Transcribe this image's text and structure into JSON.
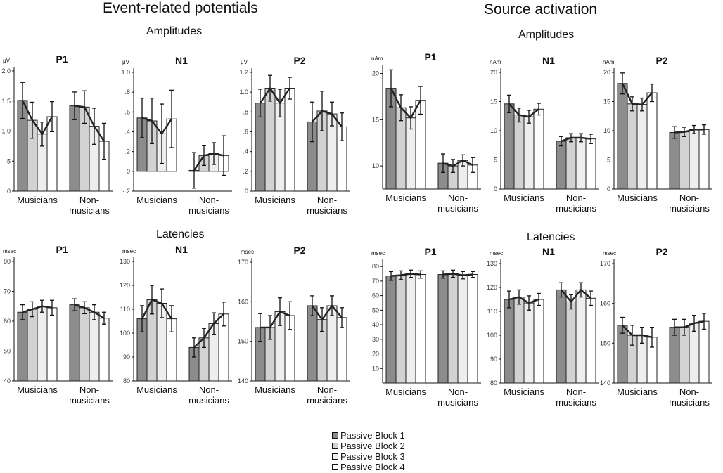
{
  "headings": {
    "erp_title": "Event-related potentials",
    "source_title": "Source activation",
    "erp_amplitudes": "Amplitudes",
    "erp_latencies": "Latencies",
    "src_amplitudes": "Amplitudes",
    "src_latencies": "Latencies"
  },
  "legend": [
    {
      "label": "Passive Block 1",
      "color": "#8c8c8c"
    },
    {
      "label": "Passive Block 2",
      "color": "#d2d2d2"
    },
    {
      "label": "Passive Block 3",
      "color": "#eeeeee"
    },
    {
      "label": "Passive Block 4",
      "color": "#ffffff"
    }
  ],
  "groups": [
    "Musicians",
    "Non-\nmusicians"
  ],
  "chart_data": [
    {
      "id": "erp-amp-p1",
      "type": "bar",
      "title": "P1",
      "unit": "μV",
      "ylim": [
        0,
        2.0
      ],
      "ticks": [
        "0",
        ".5",
        "1.0",
        "1.5",
        "2.0"
      ],
      "tick_values": [
        0,
        0.5,
        1.0,
        1.5,
        2.0
      ],
      "categories": [
        "Musicians",
        "Non-musicians"
      ],
      "series": [
        {
          "name": "Passive Block 1",
          "values": [
            1.51,
            1.42
          ],
          "errors": [
            0.3,
            0.23
          ]
        },
        {
          "name": "Passive Block 2",
          "values": [
            1.18,
            1.4
          ],
          "errors": [
            0.3,
            0.27
          ]
        },
        {
          "name": "Passive Block 3",
          "values": [
            0.95,
            1.08
          ],
          "errors": [
            0.2,
            0.3
          ]
        },
        {
          "name": "Passive Block 4",
          "values": [
            1.24,
            0.83
          ],
          "errors": [
            0.25,
            0.3
          ]
        }
      ]
    },
    {
      "id": "erp-amp-n1",
      "type": "bar",
      "title": "N1",
      "unit": "μV",
      "ylim": [
        -0.2,
        1.0
      ],
      "ticks": [
        "-.2",
        "0",
        ".2",
        ".4",
        ".6",
        ".8",
        "1.0"
      ],
      "tick_values": [
        -0.2,
        0,
        0.2,
        0.4,
        0.6,
        0.8,
        1.0
      ],
      "categories": [
        "Musicians",
        "Non-musicians"
      ],
      "series": [
        {
          "name": "Passive Block 1",
          "values": [
            0.54,
            0.01
          ],
          "errors": [
            0.2,
            0.18
          ]
        },
        {
          "name": "Passive Block 2",
          "values": [
            0.51,
            0.16
          ],
          "errors": [
            0.23,
            0.1
          ]
        },
        {
          "name": "Passive Block 3",
          "values": [
            0.38,
            0.18
          ],
          "errors": [
            0.3,
            0.11
          ]
        },
        {
          "name": "Passive Block 4",
          "values": [
            0.53,
            0.16
          ],
          "errors": [
            0.29,
            0.2
          ]
        }
      ]
    },
    {
      "id": "erp-amp-p2",
      "type": "bar",
      "title": "P2",
      "unit": "μV",
      "ylim": [
        0,
        1.2
      ],
      "ticks": [
        "0",
        ".2",
        ".4",
        ".6",
        ".8",
        "1.0",
        "1.2"
      ],
      "tick_values": [
        0,
        0.2,
        0.4,
        0.6,
        0.8,
        1.0,
        1.2
      ],
      "categories": [
        "Musicians",
        "Non-musicians"
      ],
      "series": [
        {
          "name": "Passive Block 1",
          "values": [
            0.89,
            0.7
          ],
          "errors": [
            0.14,
            0.2
          ]
        },
        {
          "name": "Passive Block 2",
          "values": [
            1.04,
            0.81
          ],
          "errors": [
            0.13,
            0.2
          ]
        },
        {
          "name": "Passive Block 3",
          "values": [
            0.89,
            0.78
          ],
          "errors": [
            0.14,
            0.12
          ]
        },
        {
          "name": "Passive Block 4",
          "values": [
            1.04,
            0.65
          ],
          "errors": [
            0.11,
            0.14
          ]
        }
      ]
    },
    {
      "id": "src-amp-p1",
      "type": "bar",
      "title": "P1",
      "unit": "nAm",
      "ylim": [
        7.5,
        20.5
      ],
      "ticks": [
        "10",
        "15",
        "20"
      ],
      "tick_values": [
        10,
        15,
        20
      ],
      "categories": [
        "Musicians",
        "Non-musicians"
      ],
      "series": [
        {
          "name": "Passive Block 1",
          "values": [
            18.4,
            10.3
          ],
          "errors": [
            2.0,
            1.0
          ]
        },
        {
          "name": "Passive Block 2",
          "values": [
            16.3,
            10.0
          ],
          "errors": [
            1.4,
            0.7
          ]
        },
        {
          "name": "Passive Block 3",
          "values": [
            15.2,
            10.6
          ],
          "errors": [
            1.2,
            0.6
          ]
        },
        {
          "name": "Passive Block 4",
          "values": [
            17.1,
            10.1
          ],
          "errors": [
            1.5,
            0.8
          ]
        }
      ]
    },
    {
      "id": "src-amp-n1",
      "type": "bar",
      "title": "N1",
      "unit": "nAm",
      "ylim": [
        0,
        20
      ],
      "ticks": [
        "0",
        "5",
        "10",
        "15",
        "20"
      ],
      "tick_values": [
        0,
        5,
        10,
        15,
        20
      ],
      "categories": [
        "Musicians",
        "Non-musicians"
      ],
      "series": [
        {
          "name": "Passive Block 1",
          "values": [
            14.6,
            8.2
          ],
          "errors": [
            1.5,
            0.8
          ]
        },
        {
          "name": "Passive Block 2",
          "values": [
            12.7,
            8.8
          ],
          "errors": [
            1.2,
            0.7
          ]
        },
        {
          "name": "Passive Block 3",
          "values": [
            12.4,
            8.8
          ],
          "errors": [
            1.1,
            0.7
          ]
        },
        {
          "name": "Passive Block 4",
          "values": [
            13.7,
            8.6
          ],
          "errors": [
            1.0,
            0.8
          ]
        }
      ]
    },
    {
      "id": "src-amp-p2",
      "type": "bar",
      "title": "P2",
      "unit": "nAm",
      "ylim": [
        0,
        20
      ],
      "ticks": [
        "0",
        "5",
        "10",
        "15",
        "20"
      ],
      "tick_values": [
        0,
        5,
        10,
        15,
        20
      ],
      "categories": [
        "Musicians",
        "Non-musicians"
      ],
      "series": [
        {
          "name": "Passive Block 1",
          "values": [
            18.1,
            9.7
          ],
          "errors": [
            1.8,
            1.0
          ]
        },
        {
          "name": "Passive Block 2",
          "values": [
            14.6,
            9.8
          ],
          "errors": [
            1.2,
            0.8
          ]
        },
        {
          "name": "Passive Block 3",
          "values": [
            14.5,
            10.2
          ],
          "errors": [
            1.1,
            0.7
          ]
        },
        {
          "name": "Passive Block 4",
          "values": [
            16.5,
            10.2
          ],
          "errors": [
            1.5,
            0.8
          ]
        }
      ]
    },
    {
      "id": "erp-lat-p1",
      "type": "bar",
      "title": "P1",
      "unit": "msec",
      "ylim": [
        40,
        80
      ],
      "ticks": [
        "40",
        "50",
        "60",
        "70",
        "80"
      ],
      "tick_values": [
        40,
        50,
        60,
        70,
        80
      ],
      "categories": [
        "Musicians",
        "Non-musicians"
      ],
      "series": [
        {
          "name": "Passive Block 1",
          "values": [
            63.0,
            65.5
          ],
          "errors": [
            2.5,
            2.0
          ]
        },
        {
          "name": "Passive Block 2",
          "values": [
            64.0,
            64.5
          ],
          "errors": [
            2.5,
            2.0
          ]
        },
        {
          "name": "Passive Block 3",
          "values": [
            65.0,
            63.0
          ],
          "errors": [
            2.0,
            2.5
          ]
        },
        {
          "name": "Passive Block 4",
          "values": [
            64.5,
            61.0
          ],
          "errors": [
            2.5,
            2.0
          ]
        }
      ]
    },
    {
      "id": "erp-lat-n1",
      "type": "bar",
      "title": "N1",
      "unit": "msec",
      "ylim": [
        80,
        130
      ],
      "ticks": [
        "80",
        "90",
        "100",
        "110",
        "120",
        "130"
      ],
      "tick_values": [
        80,
        90,
        100,
        110,
        120,
        130
      ],
      "categories": [
        "Musicians",
        "Non-musicians"
      ],
      "series": [
        {
          "name": "Passive Block 1",
          "values": [
            106.0,
            94.0
          ],
          "errors": [
            5.5,
            4.0
          ]
        },
        {
          "name": "Passive Block 2",
          "values": [
            114.0,
            98.0
          ],
          "errors": [
            6.0,
            4.0
          ]
        },
        {
          "name": "Passive Block 3",
          "values": [
            112.5,
            104.0
          ],
          "errors": [
            6.0,
            4.5
          ]
        },
        {
          "name": "Passive Block 4",
          "values": [
            106.0,
            108.0
          ],
          "errors": [
            5.5,
            5.0
          ]
        }
      ]
    },
    {
      "id": "erp-lat-p2",
      "type": "bar",
      "title": "P2",
      "unit": "msec",
      "ylim": [
        140,
        170
      ],
      "ticks": [
        "140",
        "150",
        "160",
        "170"
      ],
      "tick_values": [
        140,
        150,
        160,
        170
      ],
      "categories": [
        "Musicians",
        "Non-musicians"
      ],
      "series": [
        {
          "name": "Passive Block 1",
          "values": [
            153.5,
            159.0
          ],
          "errors": [
            3.5,
            2.5
          ]
        },
        {
          "name": "Passive Block 2",
          "values": [
            153.5,
            155.5
          ],
          "errors": [
            3.0,
            3.0
          ]
        },
        {
          "name": "Passive Block 3",
          "values": [
            157.5,
            159.0
          ],
          "errors": [
            3.5,
            2.5
          ]
        },
        {
          "name": "Passive Block 4",
          "values": [
            156.5,
            156.0
          ],
          "errors": [
            3.5,
            2.5
          ]
        }
      ]
    },
    {
      "id": "src-lat-p1",
      "type": "bar",
      "title": "P1",
      "unit": "msec",
      "ylim": [
        0,
        82
      ],
      "ticks": [
        "10",
        "20",
        "30",
        "40",
        "50",
        "60",
        "70",
        "80"
      ],
      "tick_values": [
        10,
        20,
        30,
        40,
        50,
        60,
        70,
        80
      ],
      "categories": [
        "Musicians",
        "Non-musicians"
      ],
      "series": [
        {
          "name": "Passive Block 1",
          "values": [
            73.5,
            74.5
          ],
          "errors": [
            3.0,
            2.5
          ]
        },
        {
          "name": "Passive Block 2",
          "values": [
            74.0,
            75.0
          ],
          "errors": [
            3.0,
            2.5
          ]
        },
        {
          "name": "Passive Block 3",
          "values": [
            75.0,
            74.0
          ],
          "errors": [
            2.5,
            2.5
          ]
        },
        {
          "name": "Passive Block 4",
          "values": [
            74.5,
            74.5
          ],
          "errors": [
            2.5,
            2.0
          ]
        }
      ]
    },
    {
      "id": "src-lat-n1",
      "type": "bar",
      "title": "N1",
      "unit": "msec",
      "ylim": [
        80,
        130
      ],
      "ticks": [
        "80",
        "90",
        "100",
        "110",
        "120",
        "130"
      ],
      "tick_values": [
        80,
        90,
        100,
        110,
        120,
        130
      ],
      "categories": [
        "Musicians",
        "Non-musicians"
      ],
      "series": [
        {
          "name": "Passive Block 1",
          "values": [
            115.0,
            119.0
          ],
          "errors": [
            3.5,
            3.0
          ]
        },
        {
          "name": "Passive Block 2",
          "values": [
            116.0,
            114.0
          ],
          "errors": [
            3.0,
            3.0
          ]
        },
        {
          "name": "Passive Block 3",
          "values": [
            113.5,
            119.0
          ],
          "errors": [
            3.0,
            3.0
          ]
        },
        {
          "name": "Passive Block 4",
          "values": [
            115.0,
            115.5
          ],
          "errors": [
            2.5,
            3.0
          ]
        }
      ]
    },
    {
      "id": "src-lat-p2",
      "type": "bar",
      "title": "P2",
      "unit": "msec",
      "ylim": [
        140,
        170
      ],
      "ticks": [
        "140",
        "150",
        "160",
        "170"
      ],
      "tick_values": [
        140,
        150,
        160,
        170
      ],
      "categories": [
        "Musicians",
        "Non-musicians"
      ],
      "series": [
        {
          "name": "Passive Block 1",
          "values": [
            154.5,
            154.0
          ],
          "errors": [
            2.0,
            2.0
          ]
        },
        {
          "name": "Passive Block 2",
          "values": [
            152.0,
            154.0
          ],
          "errors": [
            2.5,
            2.0
          ]
        },
        {
          "name": "Passive Block 3",
          "values": [
            152.0,
            155.0
          ],
          "errors": [
            2.0,
            2.0
          ]
        },
        {
          "name": "Passive Block 4",
          "values": [
            151.5,
            155.5
          ],
          "errors": [
            2.5,
            2.0
          ]
        }
      ]
    }
  ]
}
